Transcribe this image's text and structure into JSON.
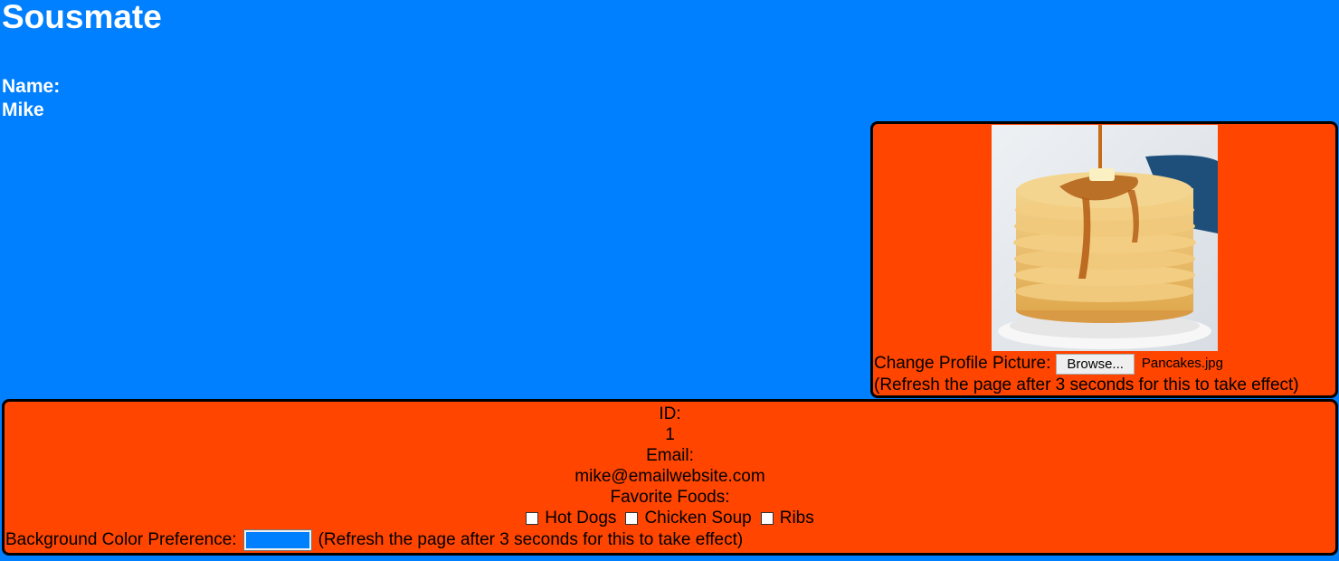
{
  "header": {
    "title": "Sousmate"
  },
  "profile": {
    "name_label": "Name:",
    "name_value": "Mike"
  },
  "picture": {
    "change_label": "Change Profile Picture:",
    "browse_label": "Browse...",
    "file_name": "Pancakes.jpg",
    "note": "(Refresh the page after 3 seconds for this to take effect)"
  },
  "info": {
    "id_label": "ID:",
    "id_value": "1",
    "email_label": "Email:",
    "email_value": "mike@emailwebsite.com",
    "foods_label": "Favorite Foods:",
    "foods": [
      {
        "label": "Hot Dogs",
        "checked": false
      },
      {
        "label": "Chicken Soup",
        "checked": false
      },
      {
        "label": "Ribs",
        "checked": false
      }
    ],
    "bg_pref_label": "Background Color Preference:",
    "bg_color": "#0080ff",
    "bg_note": "(Refresh the page after 3 seconds for this to take effect)"
  },
  "colors": {
    "page_background": "#0080ff",
    "panel_background": "#ff4500"
  }
}
